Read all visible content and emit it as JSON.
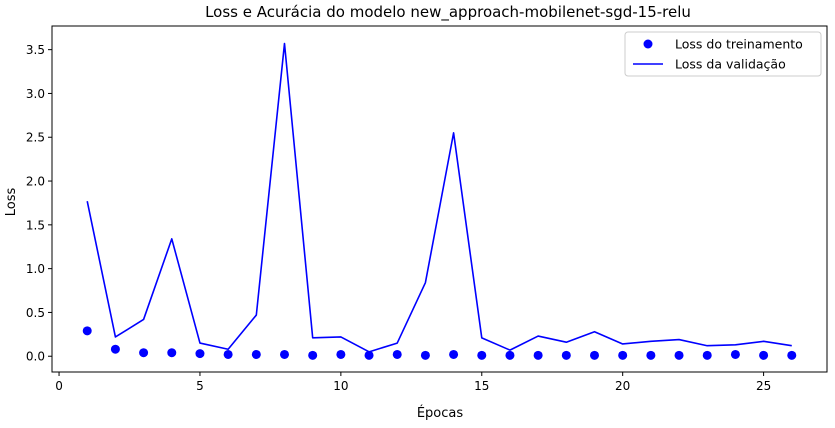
{
  "chart_data": {
    "type": "line",
    "title": "Loss e Acurácia do modelo new_approach-mobilenet-sgd-15-relu",
    "xlabel": "Épocas",
    "ylabel": "Loss",
    "xlim": [
      -0.25,
      27.25
    ],
    "ylim": [
      -0.18,
      3.77
    ],
    "xticks": [
      0,
      5,
      10,
      15,
      20,
      25
    ],
    "yticks": [
      0.0,
      0.5,
      1.0,
      1.5,
      2.0,
      2.5,
      3.0,
      3.5
    ],
    "ytick_labels": [
      "0.0",
      "0.5",
      "1.0",
      "1.5",
      "2.0",
      "2.5",
      "3.0",
      "3.5"
    ],
    "legend_position": "top-right",
    "x": [
      1,
      2,
      3,
      4,
      5,
      6,
      7,
      8,
      9,
      10,
      11,
      12,
      13,
      14,
      15,
      16,
      17,
      18,
      19,
      20,
      21,
      22,
      23,
      24,
      25,
      26
    ],
    "series": [
      {
        "name": "Loss do treinamento",
        "style": "points",
        "color": "#0000ff",
        "values": [
          0.29,
          0.08,
          0.04,
          0.04,
          0.03,
          0.02,
          0.02,
          0.02,
          0.01,
          0.02,
          0.01,
          0.02,
          0.01,
          0.02,
          0.01,
          0.01,
          0.01,
          0.01,
          0.01,
          0.01,
          0.01,
          0.01,
          0.01,
          0.02,
          0.01,
          0.01
        ]
      },
      {
        "name": "Loss da validação",
        "style": "line",
        "color": "#0000ff",
        "values": [
          1.77,
          0.22,
          0.42,
          1.34,
          0.15,
          0.08,
          0.47,
          3.57,
          0.21,
          0.22,
          0.05,
          0.15,
          0.84,
          2.55,
          0.21,
          0.07,
          0.23,
          0.16,
          0.28,
          0.14,
          0.17,
          0.19,
          0.12,
          0.13,
          0.17,
          0.12
        ]
      }
    ]
  }
}
